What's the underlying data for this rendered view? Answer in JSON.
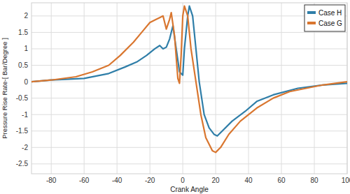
{
  "chart_data": {
    "type": "line",
    "x_label": "Crank Angle",
    "y_label": "Pressure Rise Rate-[ Bar/Degree ]",
    "xlim": [
      -92,
      100
    ],
    "xticks": [
      -80,
      -60,
      -40,
      -20,
      0,
      20,
      40,
      60,
      80,
      100
    ],
    "ylim": [
      -2.8,
      2.4
    ],
    "yticks": [
      -2.5,
      -2,
      -1.5,
      -1,
      -0.5,
      0,
      0.5,
      1,
      1.5,
      2
    ],
    "grid": true,
    "legend": "upper right",
    "series": [
      {
        "name": "Case H",
        "color": "#2f7ea8",
        "x": [
          -92,
          -80,
          -60,
          -45,
          -35,
          -28,
          -22,
          -17,
          -14,
          -12,
          -10,
          -8,
          -6,
          -4,
          -2,
          0,
          1,
          3,
          4,
          6,
          8,
          10,
          13,
          16,
          19,
          21,
          24,
          30,
          38,
          45,
          55,
          70,
          85,
          100
        ],
        "values": [
          0,
          0.05,
          0.1,
          0.25,
          0.45,
          0.6,
          0.8,
          1.0,
          1.1,
          1.0,
          1.05,
          1.3,
          1.7,
          1.0,
          0.3,
          0.2,
          1.0,
          2.0,
          2.3,
          2.0,
          1.0,
          0,
          -1.0,
          -1.4,
          -1.6,
          -1.65,
          -1.5,
          -1.2,
          -0.9,
          -0.6,
          -0.4,
          -0.2,
          -0.1,
          -0.05
        ]
      },
      {
        "name": "Case G",
        "color": "#d9762f",
        "x": [
          -92,
          -80,
          -65,
          -55,
          -45,
          -38,
          -30,
          -25,
          -20,
          -16,
          -14,
          -12,
          -10,
          -8,
          -7,
          -5,
          -3,
          -2,
          -1,
          0,
          1,
          3,
          5,
          8,
          11,
          14,
          18,
          20,
          23,
          28,
          35,
          45,
          55,
          65,
          85,
          100
        ],
        "values": [
          0,
          0.05,
          0.15,
          0.3,
          0.5,
          0.8,
          1.2,
          1.5,
          1.8,
          1.9,
          1.95,
          2.0,
          1.6,
          1.9,
          2.1,
          1.4,
          0.1,
          -0.05,
          0.8,
          2.0,
          2.3,
          2.0,
          1.0,
          0,
          -1.0,
          -1.7,
          -2.1,
          -2.15,
          -2.0,
          -1.6,
          -1.2,
          -0.8,
          -0.5,
          -0.3,
          -0.1,
          0
        ]
      }
    ]
  }
}
